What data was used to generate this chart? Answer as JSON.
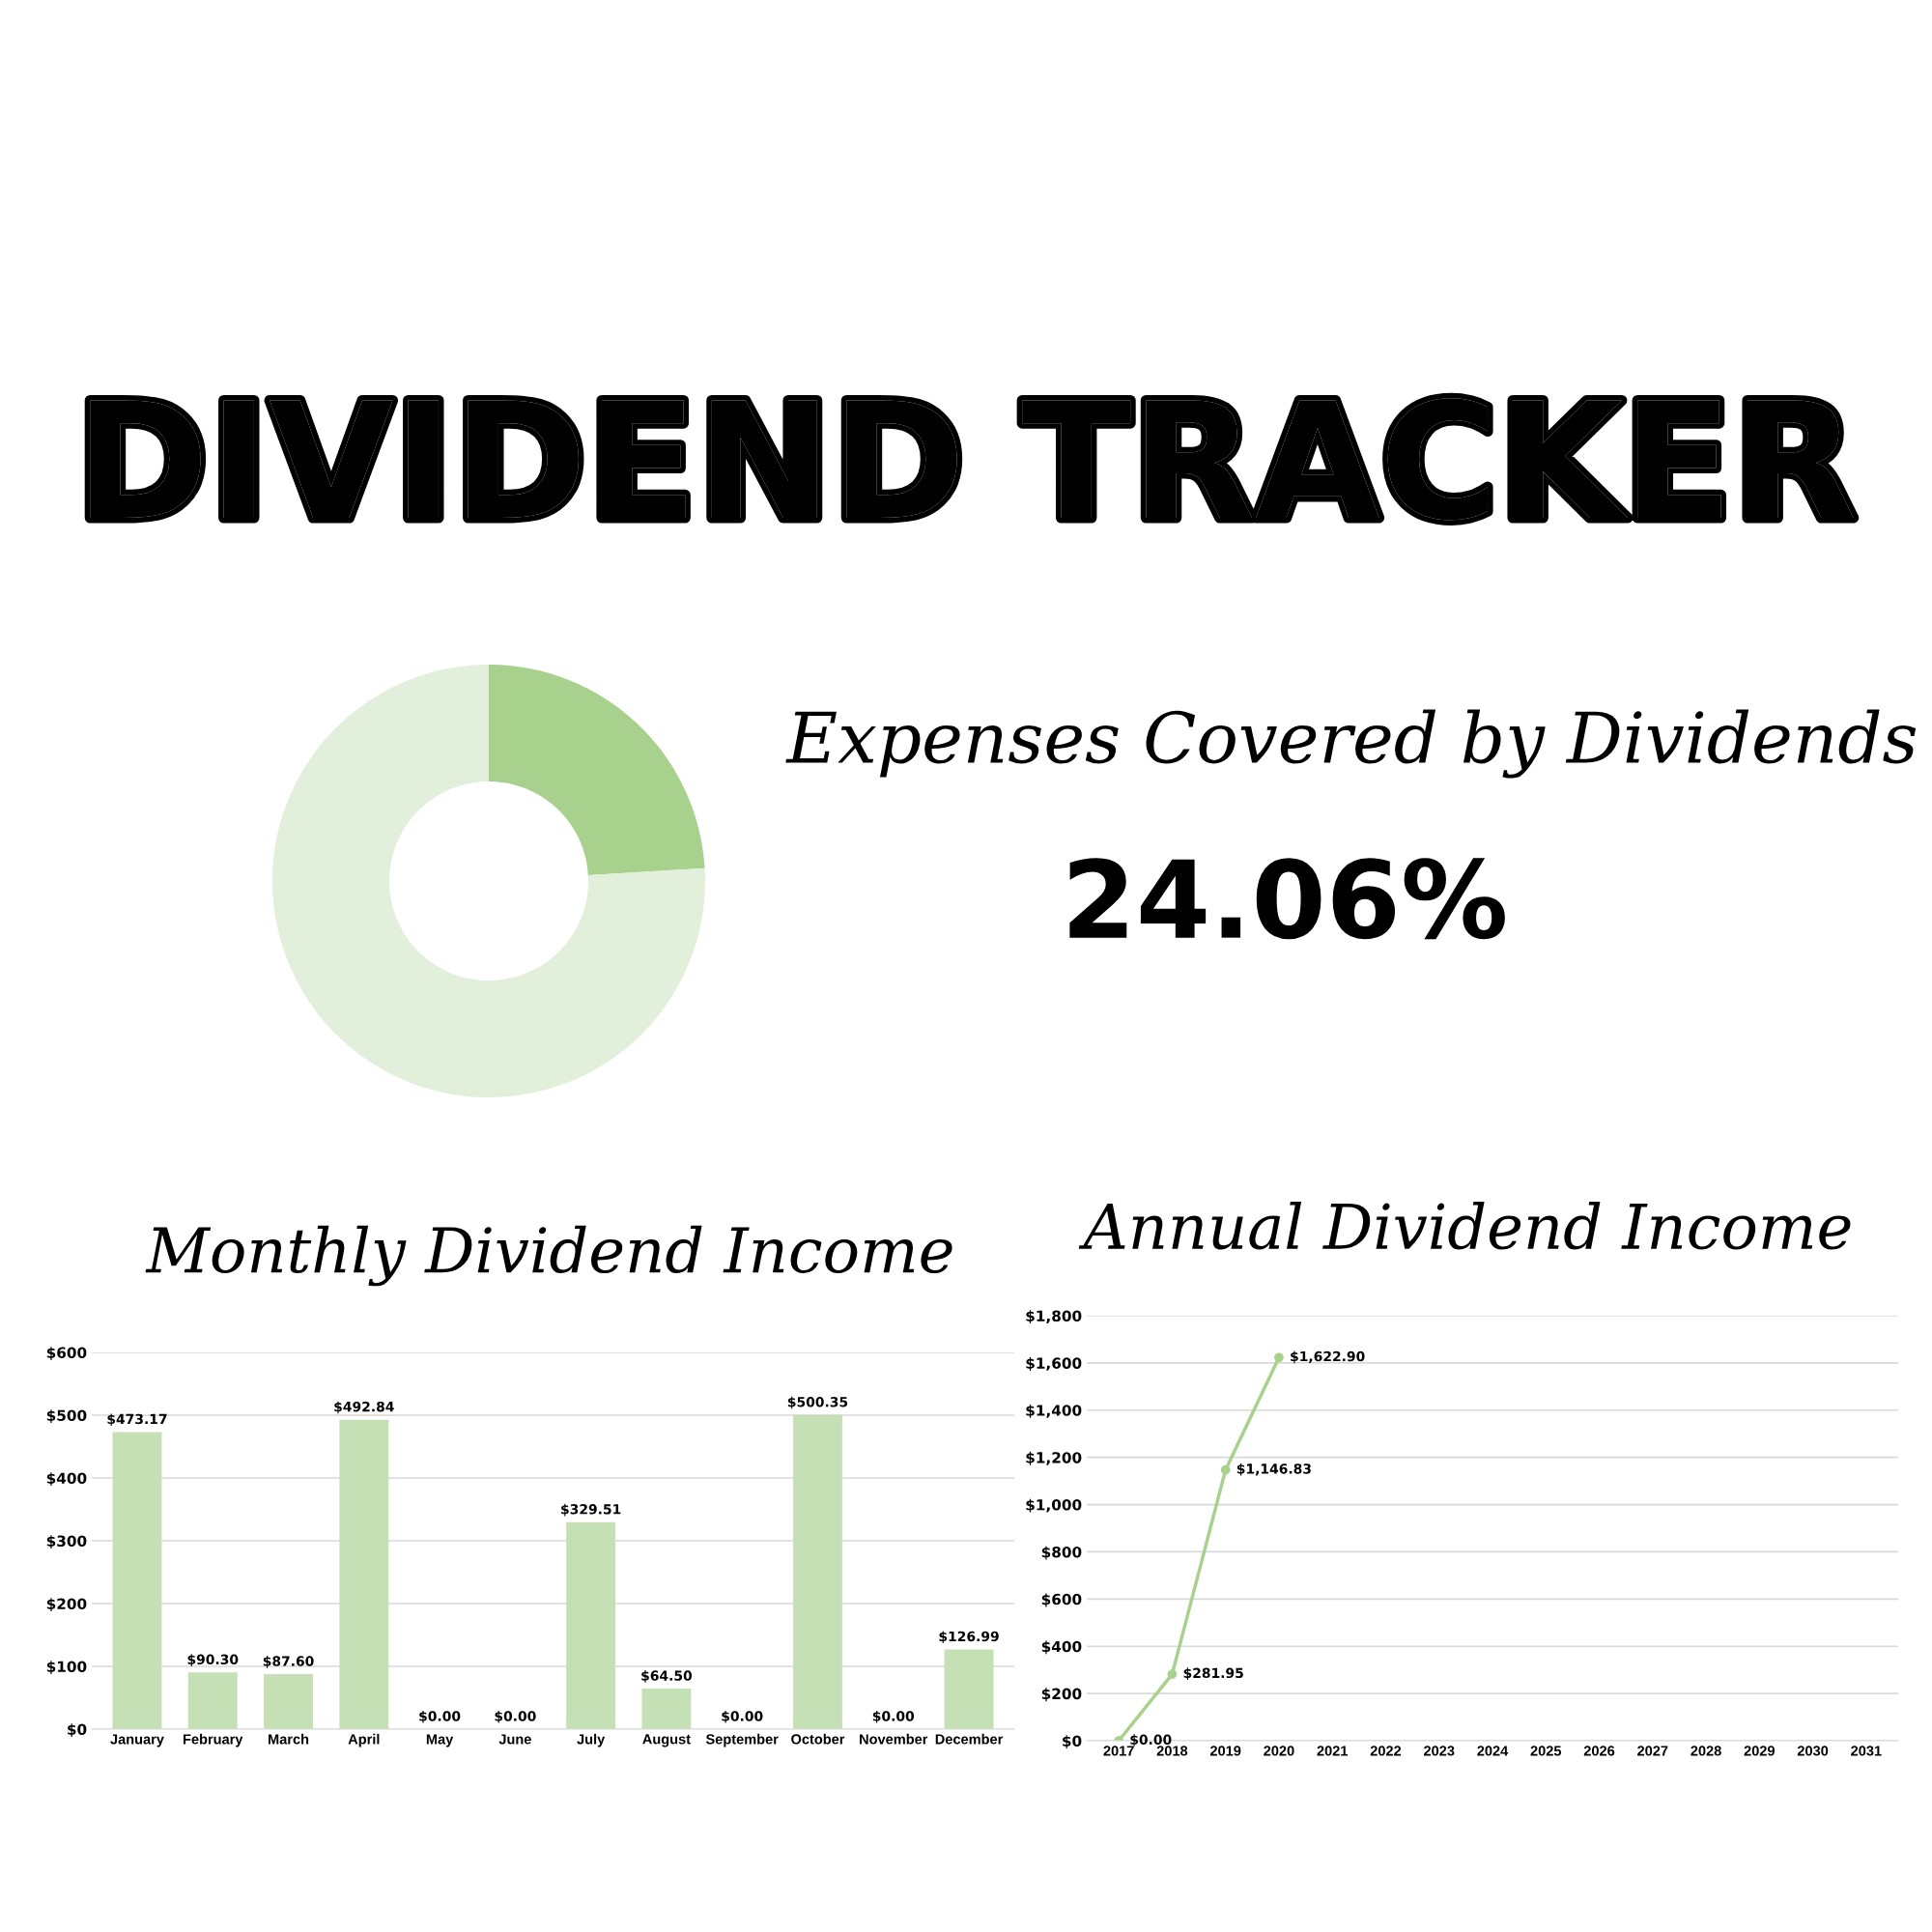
{
  "chart_data": [
    {
      "type": "donut",
      "title": "DIVIDEND TRACKER",
      "subtitle": "Expenses Covered by Dividends",
      "annotations": [
        "24.06%"
      ],
      "categories": [
        null,
        null
      ],
      "values": [
        24.06,
        75.94
      ],
      "colors": [
        "#a9d18e",
        "#e2efda"
      ]
    },
    {
      "type": "bar",
      "title": "Monthly Dividend Income",
      "categories": [
        "January",
        "February",
        "March",
        "April",
        "May",
        "June",
        "July",
        "August",
        "September",
        "October",
        "November",
        "December"
      ],
      "values": [
        473.17,
        90.3,
        87.6,
        492.84,
        0,
        0,
        329.51,
        64.5,
        0,
        500.35,
        0,
        126.99
      ],
      "value_labels": [
        "$473.17",
        "$90.30",
        "$87.60",
        "$492.84",
        "$0.00",
        "$0.00",
        "$329.51",
        "$64.50",
        "$0.00",
        "$500.35",
        "$0.00",
        "$126.99"
      ],
      "color": "#c5e0b4",
      "ylim": [
        0,
        600
      ],
      "yticks": [
        {
          "value": 0,
          "label": "$0"
        },
        {
          "value": 100,
          "label": "$100"
        },
        {
          "value": 200,
          "label": "$200"
        },
        {
          "value": 300,
          "label": "$300"
        },
        {
          "value": 400,
          "label": "$400"
        },
        {
          "value": 500,
          "label": "$500"
        },
        {
          "value": 600,
          "label": "$600"
        }
      ],
      "grid": "y",
      "legend": false
    },
    {
      "type": "line",
      "title": "Annual Dividend Income",
      "categories": [
        "2017",
        "2018",
        "2019",
        "2020",
        "2021",
        "2022",
        "2023",
        "2024",
        "2025",
        "2026",
        "2027",
        "2028",
        "2029",
        "2030",
        "2031"
      ],
      "values": [
        0,
        281.95,
        1146.83,
        1622.9,
        null,
        null,
        null,
        null,
        null,
        null,
        null,
        null,
        null,
        null,
        null
      ],
      "value_labels": [
        "$0.00",
        "$281.95",
        "$1,146.83",
        "$1,622.90",
        null,
        null,
        null,
        null,
        null,
        null,
        null,
        null,
        null,
        null,
        null
      ],
      "color": "#a9d18e",
      "marker": "circle",
      "line_style": "solid",
      "ylim": [
        0,
        1800
      ],
      "yticks": [
        {
          "value": 0,
          "label": "$0"
        },
        {
          "value": 200,
          "label": "$200"
        },
        {
          "value": 400,
          "label": "$400"
        },
        {
          "value": 600,
          "label": "$600"
        },
        {
          "value": 800,
          "label": "$800"
        },
        {
          "value": 1000,
          "label": "$1,000"
        },
        {
          "value": 1200,
          "label": "$1,200"
        },
        {
          "value": 1400,
          "label": "$1,400"
        },
        {
          "value": 1600,
          "label": "$1,600"
        },
        {
          "value": 1800,
          "label": "$1,800"
        }
      ],
      "grid": "y",
      "legend": false
    }
  ]
}
